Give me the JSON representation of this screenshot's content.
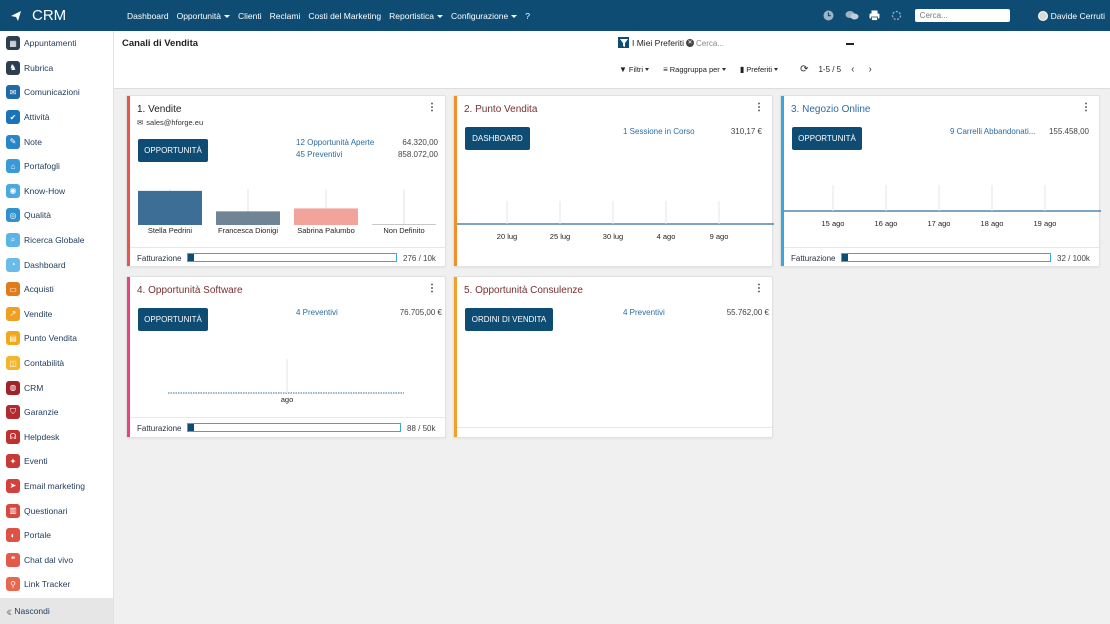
{
  "app": {
    "title": "CRM"
  },
  "topmenu": [
    {
      "label": "Dashboard",
      "caret": false
    },
    {
      "label": "Opportunità",
      "caret": true
    },
    {
      "label": "Clienti",
      "caret": false
    },
    {
      "label": "Reclami",
      "caret": false
    },
    {
      "label": "Costi del Marketing",
      "caret": false
    },
    {
      "label": "Reportistica",
      "caret": true
    },
    {
      "label": "Configurazione",
      "caret": true
    },
    {
      "label": "?",
      "caret": false
    }
  ],
  "topbar": {
    "search_placeholder": "Cerca...",
    "user": "Davide Cerruti"
  },
  "sidebar": {
    "items": [
      {
        "label": "Appuntamenti",
        "color": "#2c3e50",
        "glyph": "▦"
      },
      {
        "label": "Rubrica",
        "color": "#2d3e50",
        "glyph": "♞"
      },
      {
        "label": "Comunicazioni",
        "color": "#1f6aa5",
        "glyph": "✉"
      },
      {
        "label": "Attività",
        "color": "#1a73b8",
        "glyph": "✔"
      },
      {
        "label": "Note",
        "color": "#2a86c7",
        "glyph": "✎"
      },
      {
        "label": "Portafogli",
        "color": "#3a9ad9",
        "glyph": "⌂"
      },
      {
        "label": "Know-How",
        "color": "#4aa9e0",
        "glyph": "◉"
      },
      {
        "label": "Qualità",
        "color": "#2f92d0",
        "glyph": "◎"
      },
      {
        "label": "Ricerca Globale",
        "color": "#5bb3e6",
        "glyph": "⌕"
      },
      {
        "label": "Dashboard",
        "color": "#6bbbe8",
        "glyph": "◔"
      },
      {
        "label": "Acquisti",
        "color": "#e07b1a",
        "glyph": "▭"
      },
      {
        "label": "Vendite",
        "color": "#f0a020",
        "glyph": "↗"
      },
      {
        "label": "Punto Vendita",
        "color": "#f2a81d",
        "glyph": "▤"
      },
      {
        "label": "Contabilità",
        "color": "#f3b52a",
        "glyph": "◫"
      },
      {
        "label": "CRM",
        "color": "#a3222a",
        "glyph": "◍"
      },
      {
        "label": "Garanzie",
        "color": "#b02a30",
        "glyph": "⛉"
      },
      {
        "label": "Helpdesk",
        "color": "#c0302f",
        "glyph": "☊"
      },
      {
        "label": "Eventi",
        "color": "#c93a36",
        "glyph": "✦"
      },
      {
        "label": "Email marketing",
        "color": "#d4403b",
        "glyph": "➤"
      },
      {
        "label": "Questionari",
        "color": "#d9483f",
        "glyph": "▥"
      },
      {
        "label": "Portale",
        "color": "#df5045",
        "glyph": "◐"
      },
      {
        "label": "Chat dal vivo",
        "color": "#e35a4b",
        "glyph": "❝"
      },
      {
        "label": "Link Tracker",
        "color": "#e8684f",
        "glyph": "⚲"
      }
    ],
    "hide_label": "Nascondi"
  },
  "control": {
    "breadcrumb": "Canali di Vendita",
    "favorites": "I Miei Preferiti",
    "search_placeholder": "Cerca...",
    "filters": "Filtri",
    "groupby": "Raggruppa per",
    "favs": "Preferiti",
    "pager": "1-5 / 5"
  },
  "cards": {
    "vendite": {
      "title": "1. Vendite",
      "email": "sales@hforge.eu",
      "button": "OPPORTUNITÀ",
      "links": [
        {
          "label": "12 Opportunità Aperte",
          "amount": "64.320,00"
        },
        {
          "label": "45 Preventivi",
          "amount": "858.072,00"
        }
      ],
      "footer": {
        "label": "Fatturazione",
        "value": "276 / 10k",
        "progress": 0.0276
      },
      "chart_data": {
        "type": "bar",
        "categories": [
          "Stella Pedrini",
          "Francesca Dionigi",
          "Sabrina Palumbo",
          "Non Definito"
        ],
        "values": [
          35,
          14,
          17,
          1
        ],
        "colors": [
          "#3d6f96",
          "#6f8595",
          "#f2a39a",
          "#c8c8c8"
        ],
        "ylim": [
          0,
          40
        ]
      }
    },
    "punto_vendita": {
      "title": "2. Punto Vendita",
      "button": "DASHBOARD",
      "links": [
        {
          "label": "1 Sessione in Corso",
          "amount": "310,17 €"
        }
      ],
      "chart_data": {
        "type": "line",
        "categories": [
          "20 lug",
          "25 lug",
          "30 lug",
          "4 ago",
          "9 ago"
        ],
        "values": [
          0,
          0,
          0,
          0,
          0
        ]
      }
    },
    "negozio_online": {
      "title": "3. Negozio Online",
      "button": "OPPORTUNITÀ",
      "links": [
        {
          "label": "9 Carrelli Abbandonati...",
          "amount": "155.458,00"
        }
      ],
      "footer": {
        "label": "Fatturazione",
        "value": "32 / 100k",
        "progress": 0.0003
      },
      "chart_data": {
        "type": "line",
        "categories": [
          "15 ago",
          "16 ago",
          "17 ago",
          "18 ago",
          "19 ago"
        ],
        "values": [
          0,
          0,
          0,
          0,
          0
        ]
      }
    },
    "opp_software": {
      "title": "4. Opportunità Software",
      "button": "OPPORTUNITÀ",
      "links": [
        {
          "label": "4 Preventivi",
          "amount": "76.705,00 €"
        }
      ],
      "footer": {
        "label": "Fatturazione",
        "value": "88 / 50k",
        "progress": 0.0018
      },
      "chart_data": {
        "type": "line",
        "categories": [
          "ago"
        ],
        "values": [
          0
        ]
      }
    },
    "opp_consulenze": {
      "title": "5. Opportunità Consulenze",
      "button": "ORDINI DI VENDITA",
      "links": [
        {
          "label": "4 Preventivi",
          "amount": "55.762,00 €"
        }
      ]
    }
  },
  "colors": {
    "primary": "#0f4c73",
    "strip_red": "#e8544f",
    "strip_orange": "#f08f2b",
    "strip_blue": "#3aa7d9",
    "strip_pink": "#e8457f",
    "strip_orange2": "#f2a02b"
  }
}
